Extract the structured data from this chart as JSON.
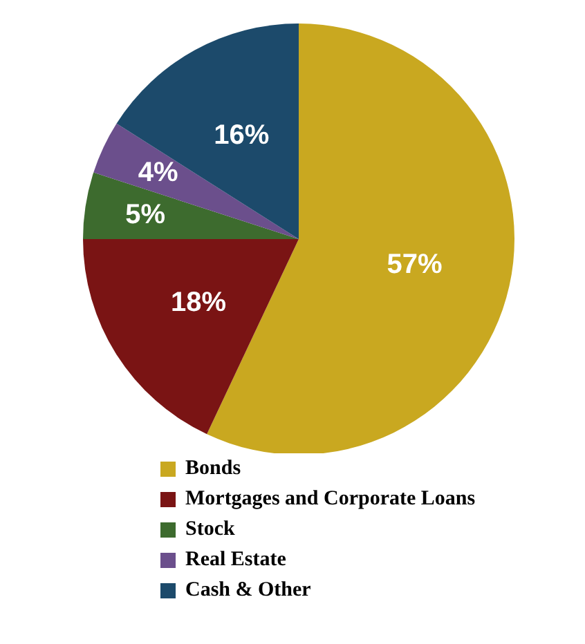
{
  "chart_data": {
    "type": "pie",
    "categories": [
      "Bonds",
      "Mortgages and Corporate Loans",
      "Stock",
      "Real Estate",
      "Cash & Other"
    ],
    "values": [
      57,
      18,
      5,
      4,
      16
    ],
    "value_labels": [
      "57%",
      "18%",
      "5%",
      "4%",
      "16%"
    ],
    "colors": [
      "#c9a820",
      "#7a1414",
      "#3d6b2e",
      "#6b4f8c",
      "#1c4a6b"
    ],
    "legend": "bottom"
  }
}
